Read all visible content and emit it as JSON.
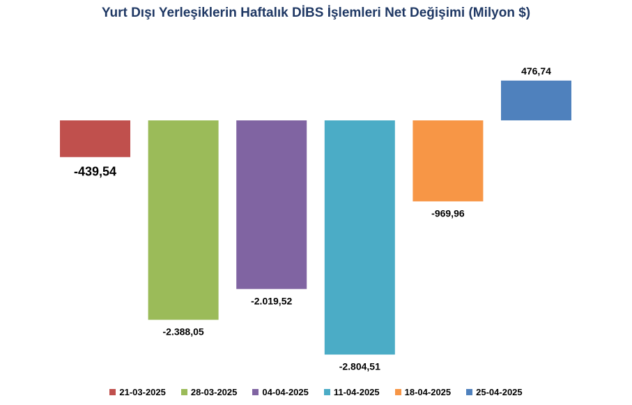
{
  "chart_data": {
    "type": "bar",
    "title": "Yurt Dışı Yerleşiklerin Haftalık DİBS İşlemleri Net Değişimi (Milyon $)",
    "xlabel": "",
    "ylabel": "",
    "categories": [
      "21-03-2025",
      "28-03-2025",
      "04-04-2025",
      "11-04-2025",
      "18-04-2025",
      "25-04-2025"
    ],
    "values": [
      -439.54,
      -2388.05,
      -2019.52,
      -2804.51,
      -969.96,
      476.74
    ],
    "value_labels": [
      "-439,54",
      "-2.388,05",
      "-2.019,52",
      "-2.804,51",
      "-969,96",
      "476,74"
    ],
    "colors": [
      "#c0504d",
      "#9bbb59",
      "#8064a2",
      "#4bacc6",
      "#f79646",
      "#4f81bd"
    ],
    "grid": false,
    "legend_position": "bottom"
  }
}
